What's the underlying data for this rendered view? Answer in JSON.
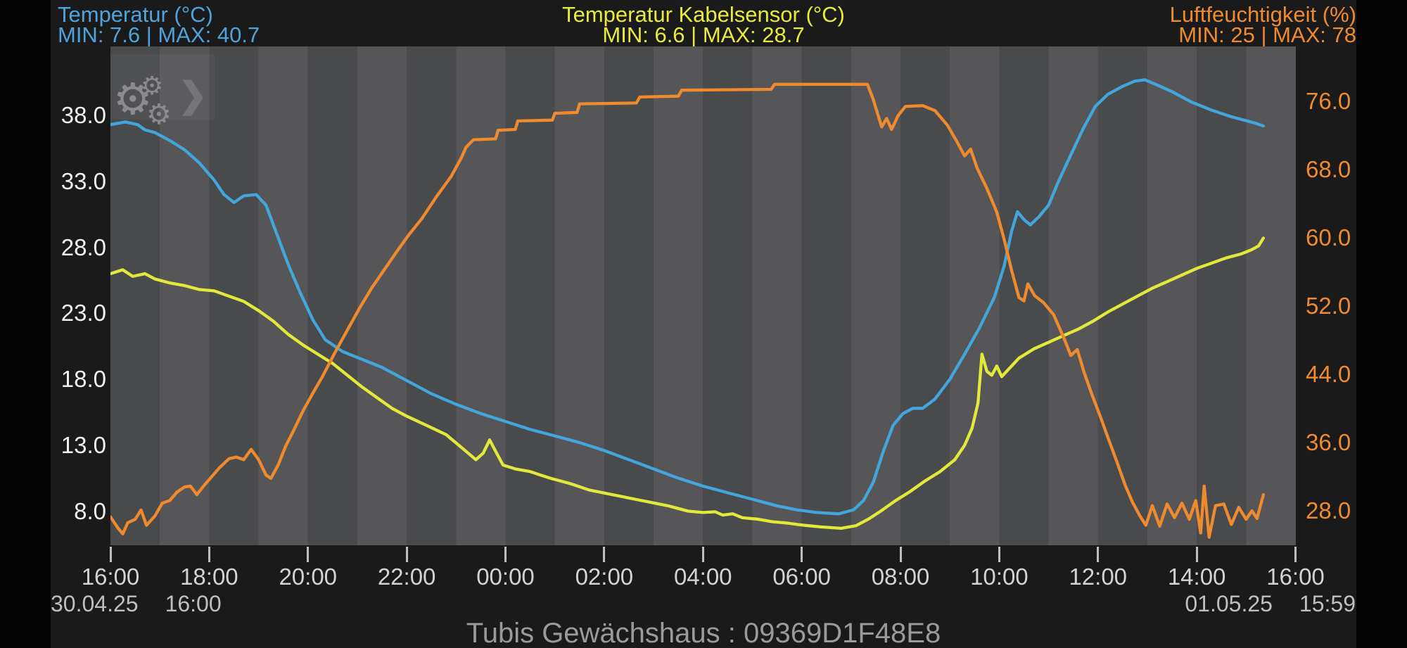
{
  "header": {
    "temp": {
      "title": "Temperatur (°C)",
      "minmax": "MIN: 7.6 | MAX: 40.7",
      "color": "#4da3da"
    },
    "cable": {
      "title": "Temperatur Kabelsensor (°C)",
      "minmax": "MIN: 6.6 | MAX: 28.7",
      "color": "#e9ea3d"
    },
    "hum": {
      "title": "Luftfeuchtigkeit (%)",
      "minmax": "MIN: 25 | MAX: 78",
      "color": "#ef8b2e"
    }
  },
  "toolbar": {
    "gear_icon": "⚙",
    "chevron_icon": "❯"
  },
  "axes": {
    "left_tick_labels": [
      "38.0",
      "33.0",
      "28.0",
      "23.0",
      "18.0",
      "13.0",
      "8.0"
    ],
    "right_tick_labels": [
      "76.0",
      "68.0",
      "60.0",
      "52.0",
      "44.0",
      "36.0",
      "28.0"
    ],
    "x_tick_labels": [
      "16:00",
      "18:00",
      "20:00",
      "22:00",
      "00:00",
      "02:00",
      "04:00",
      "06:00",
      "08:00",
      "10:00",
      "12:00",
      "14:00",
      "16:00"
    ],
    "left_color": "#f2f2f2",
    "right_color": "#ef8b2e"
  },
  "footer": {
    "start_date": "30.04.25",
    "start_time": "16:00",
    "end_date": "01.05.25",
    "end_time": "15:59",
    "title": "Tubis Gewächshaus : 09369D1F48E8"
  },
  "chart_data": {
    "type": "line",
    "title": "Tubis Gewächshaus : 09369D1F48E8",
    "x_axis": {
      "start": "30.04.25 16:00",
      "end": "01.05.25 15:59",
      "hours_span": 24,
      "tick_labels": [
        "16:00",
        "18:00",
        "20:00",
        "22:00",
        "00:00",
        "02:00",
        "04:00",
        "06:00",
        "08:00",
        "10:00",
        "12:00",
        "14:00",
        "16:00"
      ],
      "stripes": "alternating 1-hour vertical bands, odd clock hours lighter"
    },
    "y_left": {
      "label": "Temperatur (°C)",
      "ticks": [
        38.0,
        33.0,
        28.0,
        23.0,
        18.0,
        13.0,
        8.0
      ]
    },
    "y_right": {
      "label": "Luftfeuchtigkeit (%)",
      "ticks": [
        76.0,
        68.0,
        60.0,
        52.0,
        44.0,
        36.0,
        28.0
      ]
    },
    "legend_position": "top",
    "grid": false,
    "series": [
      {
        "name": "Temperatur",
        "unit": "°C",
        "axis": "left",
        "color": "#42a5dc",
        "min": 7.6,
        "max": 40.7,
        "points": [
          [
            0,
            37.3
          ],
          [
            0.3,
            37.5
          ],
          [
            0.55,
            37.3
          ],
          [
            0.7,
            36.9
          ],
          [
            0.9,
            36.7
          ],
          [
            1.2,
            36.1
          ],
          [
            1.5,
            35.4
          ],
          [
            1.8,
            34.4
          ],
          [
            2.1,
            33.1
          ],
          [
            2.3,
            32.0
          ],
          [
            2.5,
            31.4
          ],
          [
            2.7,
            31.9
          ],
          [
            2.95,
            32.0
          ],
          [
            3.15,
            31.2
          ],
          [
            3.35,
            29.2
          ],
          [
            3.6,
            26.7
          ],
          [
            3.85,
            24.5
          ],
          [
            4.1,
            22.5
          ],
          [
            4.35,
            21.0
          ],
          [
            4.7,
            20.1
          ],
          [
            5.1,
            19.5
          ],
          [
            5.5,
            18.9
          ],
          [
            6.0,
            17.9
          ],
          [
            6.5,
            16.9
          ],
          [
            7.0,
            16.1
          ],
          [
            7.5,
            15.4
          ],
          [
            8.0,
            14.8
          ],
          [
            8.5,
            14.2
          ],
          [
            9.0,
            13.7
          ],
          [
            9.5,
            13.2
          ],
          [
            10.0,
            12.6
          ],
          [
            10.5,
            11.9
          ],
          [
            11.0,
            11.2
          ],
          [
            11.5,
            10.5
          ],
          [
            12.0,
            9.9
          ],
          [
            12.5,
            9.4
          ],
          [
            13.0,
            8.9
          ],
          [
            13.5,
            8.4
          ],
          [
            13.9,
            8.1
          ],
          [
            14.3,
            7.9
          ],
          [
            14.75,
            7.8
          ],
          [
            15.05,
            8.1
          ],
          [
            15.25,
            8.8
          ],
          [
            15.45,
            10.2
          ],
          [
            15.65,
            12.5
          ],
          [
            15.85,
            14.5
          ],
          [
            16.05,
            15.4
          ],
          [
            16.25,
            15.8
          ],
          [
            16.45,
            15.8
          ],
          [
            16.7,
            16.5
          ],
          [
            17.0,
            18.0
          ],
          [
            17.3,
            19.9
          ],
          [
            17.6,
            21.9
          ],
          [
            17.9,
            24.2
          ],
          [
            18.1,
            26.6
          ],
          [
            18.25,
            29.2
          ],
          [
            18.37,
            30.7
          ],
          [
            18.5,
            30.1
          ],
          [
            18.63,
            29.7
          ],
          [
            18.8,
            30.3
          ],
          [
            19.0,
            31.2
          ],
          [
            19.2,
            33.0
          ],
          [
            19.45,
            35.0
          ],
          [
            19.7,
            37.0
          ],
          [
            19.95,
            38.7
          ],
          [
            20.2,
            39.6
          ],
          [
            20.5,
            40.2
          ],
          [
            20.75,
            40.6
          ],
          [
            20.95,
            40.7
          ],
          [
            21.2,
            40.3
          ],
          [
            21.5,
            39.8
          ],
          [
            21.9,
            39.0
          ],
          [
            22.3,
            38.4
          ],
          [
            22.7,
            37.9
          ],
          [
            23.0,
            37.6
          ],
          [
            23.2,
            37.4
          ],
          [
            23.35,
            37.2
          ]
        ]
      },
      {
        "name": "Temperatur Kabelsensor",
        "unit": "°C",
        "axis": "left",
        "color": "#e3e93b",
        "min": 6.6,
        "max": 28.7,
        "points": [
          [
            0,
            26.0
          ],
          [
            0.25,
            26.3
          ],
          [
            0.45,
            25.8
          ],
          [
            0.7,
            26.0
          ],
          [
            0.9,
            25.6
          ],
          [
            1.2,
            25.3
          ],
          [
            1.5,
            25.1
          ],
          [
            1.8,
            24.8
          ],
          [
            2.1,
            24.7
          ],
          [
            2.4,
            24.3
          ],
          [
            2.7,
            23.9
          ],
          [
            3.0,
            23.2
          ],
          [
            3.3,
            22.4
          ],
          [
            3.6,
            21.4
          ],
          [
            3.9,
            20.6
          ],
          [
            4.2,
            19.9
          ],
          [
            4.5,
            19.2
          ],
          [
            4.8,
            18.3
          ],
          [
            5.1,
            17.4
          ],
          [
            5.4,
            16.6
          ],
          [
            5.7,
            15.8
          ],
          [
            6.0,
            15.2
          ],
          [
            6.4,
            14.5
          ],
          [
            6.8,
            13.8
          ],
          [
            7.15,
            12.7
          ],
          [
            7.4,
            11.9
          ],
          [
            7.55,
            12.4
          ],
          [
            7.68,
            13.4
          ],
          [
            7.82,
            12.4
          ],
          [
            7.95,
            11.5
          ],
          [
            8.2,
            11.2
          ],
          [
            8.5,
            11.0
          ],
          [
            8.9,
            10.5
          ],
          [
            9.3,
            10.1
          ],
          [
            9.7,
            9.6
          ],
          [
            10.1,
            9.3
          ],
          [
            10.5,
            9.0
          ],
          [
            10.9,
            8.7
          ],
          [
            11.3,
            8.4
          ],
          [
            11.7,
            8.0
          ],
          [
            12.0,
            7.9
          ],
          [
            12.25,
            7.95
          ],
          [
            12.4,
            7.7
          ],
          [
            12.6,
            7.8
          ],
          [
            12.8,
            7.5
          ],
          [
            13.1,
            7.4
          ],
          [
            13.4,
            7.2
          ],
          [
            13.7,
            7.1
          ],
          [
            14.0,
            6.95
          ],
          [
            14.4,
            6.8
          ],
          [
            14.8,
            6.7
          ],
          [
            15.1,
            6.9
          ],
          [
            15.35,
            7.4
          ],
          [
            15.6,
            8.0
          ],
          [
            15.9,
            8.8
          ],
          [
            16.2,
            9.5
          ],
          [
            16.5,
            10.3
          ],
          [
            16.8,
            11.0
          ],
          [
            17.1,
            11.9
          ],
          [
            17.3,
            13.0
          ],
          [
            17.45,
            14.3
          ],
          [
            17.57,
            16.2
          ],
          [
            17.65,
            19.9
          ],
          [
            17.75,
            18.6
          ],
          [
            17.85,
            18.3
          ],
          [
            17.95,
            19.0
          ],
          [
            18.05,
            18.2
          ],
          [
            18.2,
            18.8
          ],
          [
            18.4,
            19.6
          ],
          [
            18.7,
            20.3
          ],
          [
            19.0,
            20.8
          ],
          [
            19.3,
            21.3
          ],
          [
            19.6,
            21.8
          ],
          [
            19.9,
            22.4
          ],
          [
            20.2,
            23.1
          ],
          [
            20.5,
            23.7
          ],
          [
            20.8,
            24.3
          ],
          [
            21.1,
            24.9
          ],
          [
            21.4,
            25.4
          ],
          [
            21.7,
            25.9
          ],
          [
            22.0,
            26.4
          ],
          [
            22.3,
            26.8
          ],
          [
            22.6,
            27.2
          ],
          [
            22.9,
            27.5
          ],
          [
            23.1,
            27.8
          ],
          [
            23.25,
            28.1
          ],
          [
            23.35,
            28.7
          ]
        ]
      },
      {
        "name": "Luftfeuchtigkeit",
        "unit": "%",
        "axis": "right",
        "color": "#ef8b2e",
        "min": 25,
        "max": 78,
        "points": [
          [
            0,
            27.3
          ],
          [
            0.15,
            26.0
          ],
          [
            0.25,
            25.3
          ],
          [
            0.35,
            26.6
          ],
          [
            0.5,
            27.0
          ],
          [
            0.62,
            28.1
          ],
          [
            0.73,
            26.3
          ],
          [
            0.9,
            27.4
          ],
          [
            1.05,
            28.9
          ],
          [
            1.2,
            29.2
          ],
          [
            1.35,
            30.2
          ],
          [
            1.5,
            30.8
          ],
          [
            1.62,
            30.9
          ],
          [
            1.75,
            29.9
          ],
          [
            1.9,
            31.0
          ],
          [
            2.05,
            32.0
          ],
          [
            2.2,
            33.0
          ],
          [
            2.4,
            34.1
          ],
          [
            2.55,
            34.3
          ],
          [
            2.7,
            34.0
          ],
          [
            2.85,
            35.2
          ],
          [
            3.0,
            34.0
          ],
          [
            3.15,
            32.2
          ],
          [
            3.25,
            31.8
          ],
          [
            3.4,
            33.4
          ],
          [
            3.55,
            35.6
          ],
          [
            3.7,
            37.3
          ],
          [
            3.9,
            39.7
          ],
          [
            4.1,
            41.8
          ],
          [
            4.3,
            43.8
          ],
          [
            4.55,
            46.6
          ],
          [
            4.8,
            49.2
          ],
          [
            5.05,
            51.8
          ],
          [
            5.3,
            54.2
          ],
          [
            5.55,
            56.3
          ],
          [
            5.8,
            58.4
          ],
          [
            6.05,
            60.4
          ],
          [
            6.3,
            62.2
          ],
          [
            6.6,
            64.8
          ],
          [
            6.9,
            67.2
          ],
          [
            7.1,
            69.3
          ],
          [
            7.2,
            70.6
          ],
          [
            7.35,
            71.5
          ],
          [
            7.8,
            71.6
          ],
          [
            7.85,
            72.6
          ],
          [
            8.2,
            72.7
          ],
          [
            8.25,
            73.7
          ],
          [
            8.95,
            73.8
          ],
          [
            9.0,
            74.6
          ],
          [
            9.45,
            74.7
          ],
          [
            9.5,
            75.7
          ],
          [
            10.65,
            75.8
          ],
          [
            10.72,
            76.5
          ],
          [
            11.5,
            76.6
          ],
          [
            11.57,
            77.3
          ],
          [
            13.38,
            77.4
          ],
          [
            13.45,
            78.0
          ],
          [
            15.33,
            78.0
          ],
          [
            15.45,
            76.2
          ],
          [
            15.55,
            74.3
          ],
          [
            15.62,
            73.0
          ],
          [
            15.72,
            74.0
          ],
          [
            15.82,
            72.7
          ],
          [
            15.95,
            74.3
          ],
          [
            16.1,
            75.4
          ],
          [
            16.45,
            75.5
          ],
          [
            16.7,
            74.9
          ],
          [
            16.95,
            73.2
          ],
          [
            17.15,
            71.2
          ],
          [
            17.3,
            69.6
          ],
          [
            17.42,
            70.4
          ],
          [
            17.55,
            68.2
          ],
          [
            17.75,
            65.8
          ],
          [
            17.95,
            63.0
          ],
          [
            18.1,
            59.8
          ],
          [
            18.25,
            56.2
          ],
          [
            18.4,
            53.0
          ],
          [
            18.5,
            52.6
          ],
          [
            18.58,
            54.6
          ],
          [
            18.72,
            53.2
          ],
          [
            18.9,
            52.4
          ],
          [
            19.1,
            51.0
          ],
          [
            19.3,
            48.4
          ],
          [
            19.45,
            46.2
          ],
          [
            19.58,
            46.9
          ],
          [
            19.72,
            44.2
          ],
          [
            19.88,
            41.6
          ],
          [
            20.05,
            39.0
          ],
          [
            20.2,
            36.6
          ],
          [
            20.38,
            33.8
          ],
          [
            20.55,
            31.0
          ],
          [
            20.7,
            29.0
          ],
          [
            20.85,
            27.4
          ],
          [
            20.97,
            26.3
          ],
          [
            21.1,
            28.6
          ],
          [
            21.25,
            26.2
          ],
          [
            21.4,
            28.8
          ],
          [
            21.55,
            27.2
          ],
          [
            21.7,
            28.9
          ],
          [
            21.85,
            27.0
          ],
          [
            21.98,
            29.2
          ],
          [
            22.08,
            25.4
          ],
          [
            22.15,
            30.9
          ],
          [
            22.25,
            24.9
          ],
          [
            22.38,
            28.6
          ],
          [
            22.55,
            28.8
          ],
          [
            22.7,
            26.4
          ],
          [
            22.85,
            28.4
          ],
          [
            23.0,
            27.0
          ],
          [
            23.12,
            28.0
          ],
          [
            23.22,
            27.1
          ],
          [
            23.35,
            29.9
          ]
        ]
      }
    ]
  }
}
